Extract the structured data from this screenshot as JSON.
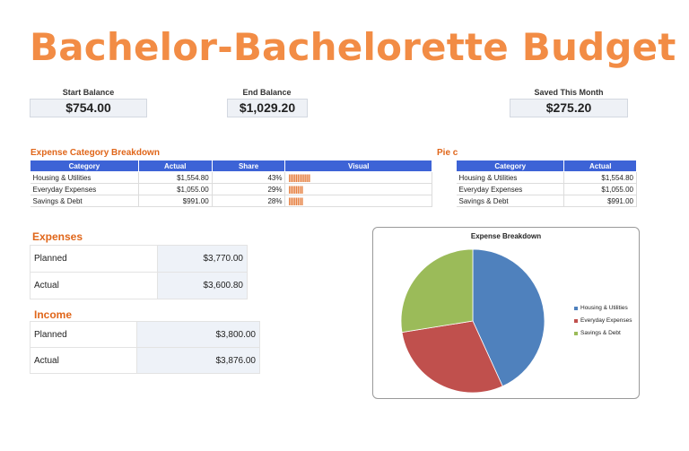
{
  "title": "Bachelor-Bachelorette Budget",
  "balances": {
    "start_label": "Start Balance",
    "start_value": "$754.00",
    "end_label": "End Balance",
    "end_value": "$1,029.20",
    "saved_label": "Saved This Month",
    "saved_value": "$275.20"
  },
  "breakdown": {
    "heading": "Expense Category Breakdown",
    "headers": [
      "Category",
      "Actual",
      "Share",
      "Visual"
    ],
    "rows": [
      {
        "category": "Housing & Utilities",
        "actual": "$1,554.80",
        "share": "43%",
        "visual": "||||||||||||"
      },
      {
        "category": "Everyday Expenses",
        "actual": "$1,055.00",
        "share": "29%",
        "visual": "||||||||"
      },
      {
        "category": "Savings & Debt",
        "actual": "$991.00",
        "share": "28%",
        "visual": "||||||||"
      }
    ]
  },
  "pie_table": {
    "heading": "Pie c",
    "headers": [
      "Category",
      "Actual"
    ],
    "rows": [
      {
        "category": "Housing & Utilities",
        "actual": "$1,554.80"
      },
      {
        "category": "Everyday Expenses",
        "actual": "$1,055.00"
      },
      {
        "category": "Savings & Debt",
        "actual": "$991.00"
      }
    ]
  },
  "expenses": {
    "heading": "Expenses",
    "planned_label": "Planned",
    "planned_value": "$3,770.00",
    "actual_label": "Actual",
    "actual_value": "$3,600.80"
  },
  "income": {
    "heading": "Income",
    "planned_label": "Planned",
    "planned_value": "$3,800.00",
    "actual_label": "Actual",
    "actual_value": "$3,876.00"
  },
  "chart_data": {
    "type": "pie",
    "title": "Expense Breakdown",
    "categories": [
      "Housing & Utilities",
      "Everyday Expenses",
      "Savings & Debt"
    ],
    "values": [
      1554.8,
      1055.0,
      991.0
    ],
    "colors": [
      "#4f81bd",
      "#c0504d",
      "#9bbb59"
    ],
    "legend": "right"
  }
}
